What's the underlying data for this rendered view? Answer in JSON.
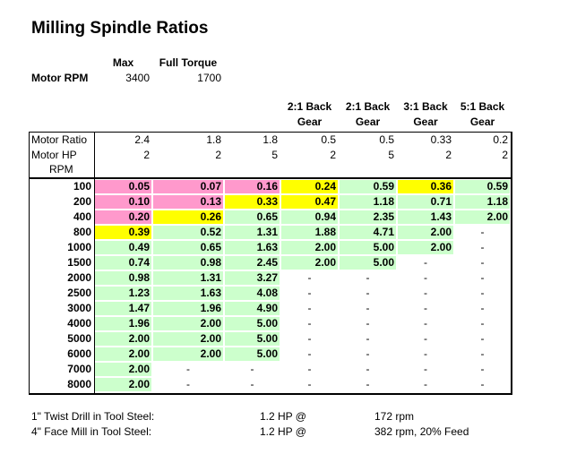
{
  "title": "Milling Spindle Ratios",
  "motor_rpm": {
    "headers": [
      "Max",
      "Full Torque"
    ],
    "label": "Motor RPM",
    "values": [
      "3400",
      "1700"
    ]
  },
  "gear_headers": [
    [
      "2:1 Back",
      "Gear"
    ],
    [
      "2:1 Back",
      "Gear"
    ],
    [
      "3:1 Back",
      "Gear"
    ],
    [
      "5:1 Back",
      "Gear"
    ]
  ],
  "table": {
    "rows": [
      [
        "Motor Ratio",
        "2.4",
        "1.8",
        "1.8",
        "0.5",
        "0.5",
        "0.33",
        "0.2"
      ],
      [
        "Motor HP",
        "2",
        "2",
        "5",
        "2",
        "5",
        "2",
        "2"
      ]
    ],
    "rpm_label": "RPM",
    "data": [
      [
        "100",
        "0.05",
        "0.07",
        "0.16",
        "0.24",
        "0.59",
        "0.36",
        "0.59"
      ],
      [
        "200",
        "0.10",
        "0.13",
        "0.33",
        "0.47",
        "1.18",
        "0.71",
        "1.18"
      ],
      [
        "400",
        "0.20",
        "0.26",
        "0.65",
        "0.94",
        "2.35",
        "1.43",
        "2.00"
      ],
      [
        "800",
        "0.39",
        "0.52",
        "1.31",
        "1.88",
        "4.71",
        "2.00",
        "-"
      ],
      [
        "1000",
        "0.49",
        "0.65",
        "1.63",
        "2.00",
        "5.00",
        "2.00",
        "-"
      ],
      [
        "1500",
        "0.74",
        "0.98",
        "2.45",
        "2.00",
        "5.00",
        "-",
        "-"
      ],
      [
        "2000",
        "0.98",
        "1.31",
        "3.27",
        "-",
        "-",
        "-",
        "-"
      ],
      [
        "2500",
        "1.23",
        "1.63",
        "4.08",
        "-",
        "-",
        "-",
        "-"
      ],
      [
        "3000",
        "1.47",
        "1.96",
        "4.90",
        "-",
        "-",
        "-",
        "-"
      ],
      [
        "4000",
        "1.96",
        "2.00",
        "5.00",
        "-",
        "-",
        "-",
        "-"
      ],
      [
        "5000",
        "2.00",
        "2.00",
        "5.00",
        "-",
        "-",
        "-",
        "-"
      ],
      [
        "6000",
        "2.00",
        "2.00",
        "5.00",
        "-",
        "-",
        "-",
        "-"
      ],
      [
        "7000",
        "2.00",
        "-",
        "-",
        "-",
        "-",
        "-",
        "-"
      ],
      [
        "8000",
        "2.00",
        "-",
        "-",
        "-",
        "-",
        "-",
        "-"
      ]
    ],
    "fills": [
      "pppygyg",
      "ppyyggg",
      "pyggggg",
      "yggggg.",
      "gggggg.",
      "ggggg..",
      "ggg....",
      "ggg....",
      "ggg....",
      "ggg....",
      "ggg....",
      "ggg....",
      "g......",
      "g......"
    ],
    "colors": {
      "p": "#ff99cc",
      "y": "#ffff00",
      "g": "#ccffcc"
    }
  },
  "notes": [
    [
      "1\" Twist Drill in Tool Steel:",
      "1.2 HP @",
      "172 rpm"
    ],
    [
      "4\" Face Mill in Tool Steel:",
      "1.2 HP @",
      "382 rpm, 20% Feed"
    ]
  ]
}
